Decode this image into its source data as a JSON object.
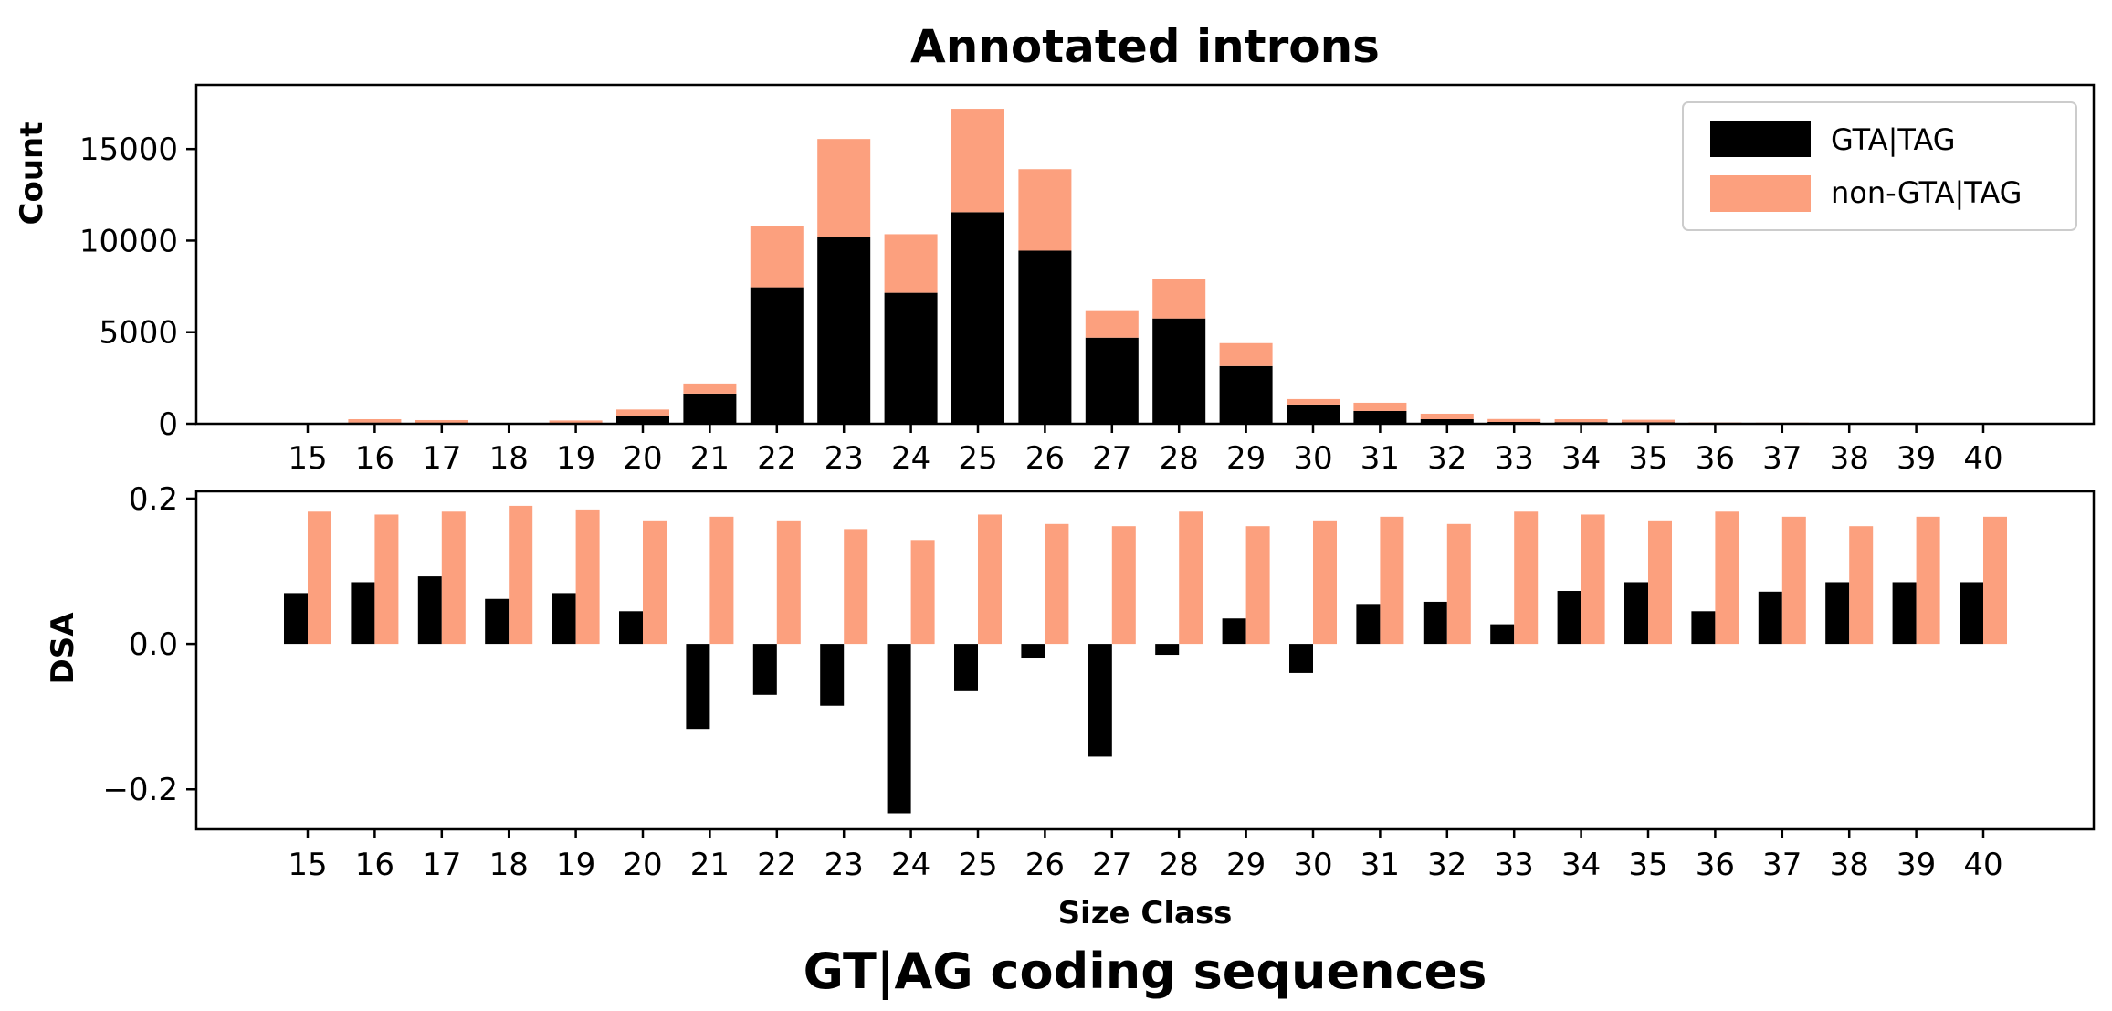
{
  "chart_data": [
    {
      "type": "bar",
      "stacked": true,
      "title": "Annotated introns",
      "xlabel": "",
      "ylabel": "Count",
      "categories": [
        "15",
        "16",
        "17",
        "18",
        "19",
        "20",
        "21",
        "22",
        "23",
        "24",
        "25",
        "26",
        "27",
        "28",
        "29",
        "30",
        "31",
        "32",
        "33",
        "34",
        "35",
        "36",
        "37",
        "38",
        "39",
        "40"
      ],
      "series": [
        {
          "name": "GTA|TAG",
          "color": "#000000",
          "values": [
            20,
            60,
            50,
            20,
            50,
            400,
            1650,
            7450,
            10200,
            7150,
            11550,
            9450,
            4700,
            5750,
            3150,
            1050,
            700,
            250,
            100,
            90,
            80,
            30,
            25,
            20,
            15,
            10
          ]
        },
        {
          "name": "non-GTA|TAG",
          "color": "#FCA07E",
          "values": [
            30,
            190,
            150,
            30,
            130,
            380,
            550,
            3350,
            5350,
            3200,
            5650,
            4450,
            1500,
            2150,
            1250,
            300,
            450,
            300,
            160,
            160,
            140,
            40,
            35,
            30,
            25,
            25
          ]
        }
      ],
      "ylim": [
        0,
        18500
      ],
      "yticks": [
        0,
        5000,
        10000,
        15000
      ],
      "ytick_labels": [
        "0",
        "5000",
        "10000",
        "15000"
      ],
      "legend": {
        "position": "top-right",
        "entries": [
          "GTA|TAG",
          "non-GTA|TAG"
        ]
      }
    },
    {
      "type": "bar",
      "stacked": false,
      "title": "",
      "xlabel": "Size Class",
      "ylabel": "DSA",
      "categories": [
        "15",
        "16",
        "17",
        "18",
        "19",
        "20",
        "21",
        "22",
        "23",
        "24",
        "25",
        "26",
        "27",
        "28",
        "29",
        "30",
        "31",
        "32",
        "33",
        "34",
        "35",
        "36",
        "37",
        "38",
        "39",
        "40"
      ],
      "series": [
        {
          "name": "GTA|TAG",
          "color": "#000000",
          "values": [
            0.07,
            0.085,
            0.093,
            0.062,
            0.07,
            0.045,
            -0.117,
            -0.07,
            -0.085,
            -0.233,
            -0.065,
            -0.02,
            -0.155,
            -0.015,
            0.035,
            -0.04,
            0.055,
            0.058,
            0.027,
            0.073,
            0.085,
            0.045,
            0.072,
            0.085,
            0.085,
            0.085
          ]
        },
        {
          "name": "non-GTA|TAG",
          "color": "#FCA07E",
          "values": [
            0.182,
            0.178,
            0.182,
            0.19,
            0.185,
            0.17,
            0.175,
            0.17,
            0.158,
            0.143,
            0.178,
            0.165,
            0.162,
            0.182,
            0.162,
            0.17,
            0.175,
            0.165,
            0.182,
            0.178,
            0.17,
            0.182,
            0.175,
            0.162,
            0.175,
            0.175
          ]
        }
      ],
      "ylim": [
        -0.255,
        0.21
      ],
      "yticks": [
        -0.2,
        0.0,
        0.2
      ],
      "ytick_labels": [
        "−0.2",
        "0.0",
        "0.2"
      ]
    }
  ],
  "caption": "GT|AG coding sequences"
}
